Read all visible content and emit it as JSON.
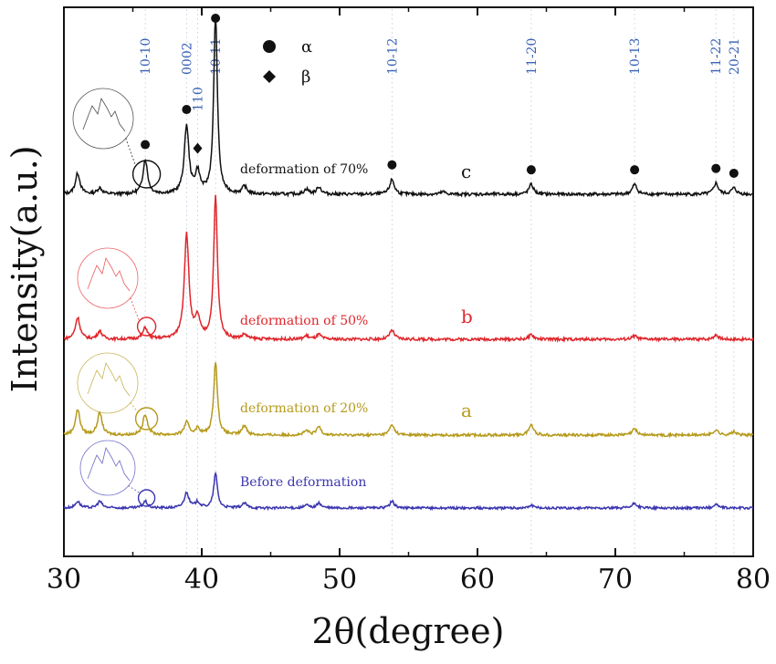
{
  "chart_data": {
    "type": "line",
    "xlabel": "2θ(degree)",
    "ylabel": "Intensity(a.u.)",
    "xlim": [
      30,
      80
    ],
    "xticks": [
      30,
      40,
      50,
      60,
      70,
      80
    ],
    "grid": false,
    "plane_labels": [
      {
        "text": "10-10",
        "x": 35.9
      },
      {
        "text": "0002",
        "x": 38.9
      },
      {
        "text": "110",
        "x": 39.7
      },
      {
        "text": "10-11",
        "x": 41.0
      },
      {
        "text": "10-12",
        "x": 53.8
      },
      {
        "text": "11-20",
        "x": 63.9
      },
      {
        "text": "10-13",
        "x": 71.4
      },
      {
        "text": "11-22",
        "x": 77.3
      },
      {
        "text": "20-21",
        "x": 78.6
      }
    ],
    "legend": [
      {
        "marker": "circle",
        "label": "α"
      },
      {
        "marker": "diamond",
        "label": "β"
      }
    ],
    "phase_markers": {
      "alpha": [
        35.9,
        38.9,
        41.0,
        53.8,
        63.9,
        71.4,
        77.3,
        78.6
      ],
      "beta": [
        39.7
      ]
    },
    "series": [
      {
        "name": "deformation of 70%",
        "letter": "c",
        "color": "#111111",
        "baseline": 0,
        "peaks": [
          [
            31.0,
            0.17
          ],
          [
            32.6,
            0.05
          ],
          [
            35.9,
            0.28
          ],
          [
            38.9,
            0.55
          ],
          [
            39.7,
            0.17
          ],
          [
            41.0,
            1.45
          ],
          [
            43.1,
            0.06
          ],
          [
            47.6,
            0.04
          ],
          [
            48.5,
            0.06
          ],
          [
            53.8,
            0.12
          ],
          [
            57.5,
            0.02
          ],
          [
            63.9,
            0.08
          ],
          [
            71.4,
            0.08
          ],
          [
            77.3,
            0.09
          ],
          [
            78.6,
            0.05
          ]
        ]
      },
      {
        "name": "deformation of 50%",
        "letter": "b",
        "color": "#e0262b",
        "baseline": 0,
        "peaks": [
          [
            31.0,
            0.19
          ],
          [
            32.6,
            0.07
          ],
          [
            35.9,
            0.1
          ],
          [
            38.9,
            0.92
          ],
          [
            39.7,
            0.17
          ],
          [
            41.0,
            1.25
          ],
          [
            43.1,
            0.04
          ],
          [
            47.6,
            0.03
          ],
          [
            48.5,
            0.04
          ],
          [
            53.8,
            0.08
          ],
          [
            63.9,
            0.04
          ],
          [
            71.4,
            0.03
          ],
          [
            77.3,
            0.04
          ]
        ]
      },
      {
        "name": "deformation of 20%",
        "letter": "a",
        "color": "#b59a1b",
        "baseline": 0,
        "peaks": [
          [
            31.0,
            0.24
          ],
          [
            32.6,
            0.21
          ],
          [
            35.9,
            0.2
          ],
          [
            38.9,
            0.12
          ],
          [
            39.7,
            0.06
          ],
          [
            41.0,
            0.7
          ],
          [
            43.1,
            0.09
          ],
          [
            47.6,
            0.04
          ],
          [
            48.5,
            0.08
          ],
          [
            53.8,
            0.1
          ],
          [
            63.9,
            0.1
          ],
          [
            71.4,
            0.06
          ],
          [
            77.3,
            0.05
          ],
          [
            78.6,
            0.03
          ]
        ]
      },
      {
        "name": "Before deformation",
        "letter": "",
        "color": "#3a35b0",
        "baseline": 0,
        "peaks": [
          [
            31.0,
            0.07
          ],
          [
            32.6,
            0.07
          ],
          [
            35.9,
            0.07
          ],
          [
            38.9,
            0.16
          ],
          [
            39.7,
            0.06
          ],
          [
            41.0,
            0.36
          ],
          [
            43.1,
            0.05
          ],
          [
            47.6,
            0.03
          ],
          [
            48.5,
            0.05
          ],
          [
            53.8,
            0.07
          ],
          [
            63.9,
            0.03
          ],
          [
            71.4,
            0.05
          ],
          [
            77.3,
            0.04
          ]
        ]
      }
    ]
  }
}
